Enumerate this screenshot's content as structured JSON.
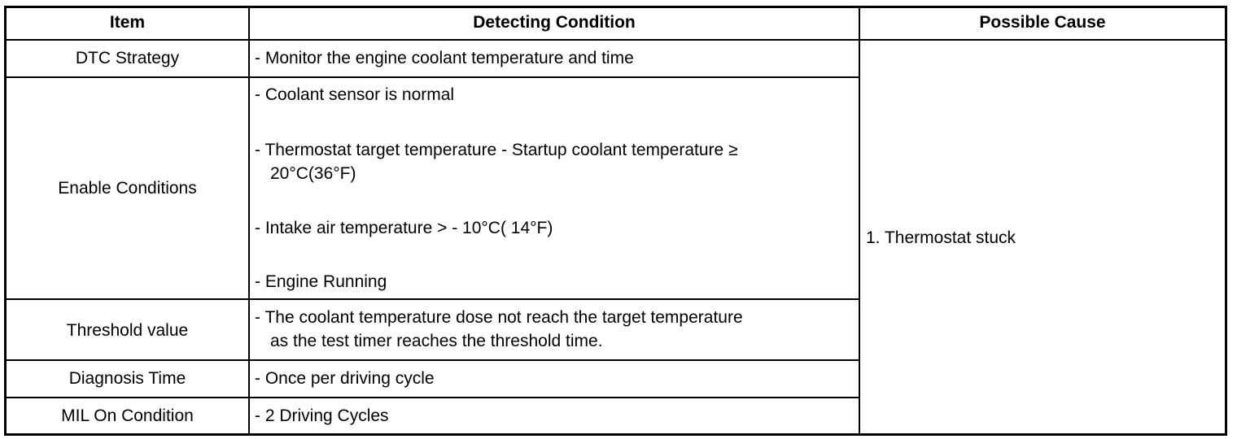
{
  "headers": {
    "item": "Item",
    "condition": "Detecting Condition",
    "cause": "Possible Cause"
  },
  "rows": [
    {
      "item": "DTC Strategy",
      "lines": [
        "- Monitor the engine coolant temperature and time"
      ]
    },
    {
      "item": "Enable Conditions",
      "lines": [
        "- Coolant sensor is normal",
        "- Thermostat target temperature - Startup coolant temperature ≥",
        "20°C(36°F)",
        "- Intake air temperature > - 10°C( 14°F)",
        "- Engine Running"
      ]
    },
    {
      "item": "Threshold value",
      "lines": [
        "- The coolant temperature dose not reach the target temperature",
        "as the test timer reaches the threshold time."
      ]
    },
    {
      "item": "Diagnosis Time",
      "lines": [
        "- Once per driving cycle"
      ]
    },
    {
      "item": "MIL On Condition",
      "lines": [
        "- 2 Driving Cycles"
      ]
    }
  ],
  "possible_cause": "1. Thermostat stuck"
}
